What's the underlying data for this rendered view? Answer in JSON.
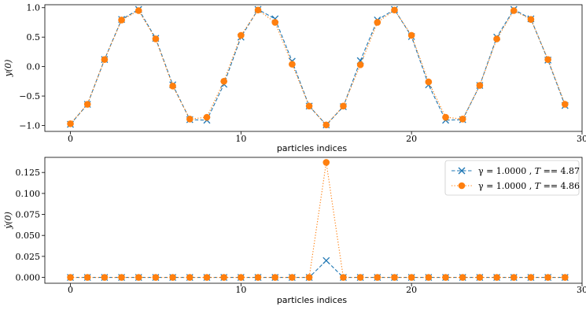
{
  "chart_data": [
    {
      "type": "line",
      "xlabel": "particles indices",
      "ylabel": "y(0)",
      "xlim": [
        -1.5,
        30
      ],
      "ylim": [
        -1.1,
        1.05
      ],
      "xticks": [
        0,
        10,
        20,
        30
      ],
      "xtick_labels": [
        "0",
        "10",
        "20",
        "30"
      ],
      "yticks": [
        -1.0,
        -0.5,
        0.0,
        0.5,
        1.0
      ],
      "ytick_labels": [
        "−1.0",
        "−0.5",
        "0.0",
        "0.5",
        "1.0"
      ],
      "x": [
        0,
        1,
        2,
        3,
        4,
        5,
        6,
        7,
        8,
        9,
        10,
        11,
        12,
        13,
        14,
        15,
        16,
        17,
        18,
        19,
        20,
        21,
        22,
        23,
        24,
        25,
        26,
        27,
        28,
        29
      ],
      "series": [
        {
          "color": "#1f77b4",
          "marker": "x",
          "linestyle": "dashed",
          "values": [
            -0.98,
            -0.64,
            0.12,
            0.8,
            0.97,
            0.48,
            -0.31,
            -0.9,
            -0.91,
            -0.3,
            0.5,
            0.97,
            0.81,
            0.09,
            -0.67,
            -0.99,
            -0.68,
            0.1,
            0.79,
            0.97,
            0.51,
            -0.31,
            -0.91,
            -0.9,
            -0.32,
            0.5,
            0.97,
            0.81,
            0.11,
            -0.66
          ]
        },
        {
          "color": "#ff7f0e",
          "marker": "o",
          "linestyle": "dotted",
          "values": [
            -0.97,
            -0.64,
            0.12,
            0.79,
            0.95,
            0.47,
            -0.33,
            -0.89,
            -0.86,
            -0.25,
            0.53,
            0.96,
            0.75,
            0.04,
            -0.67,
            -0.99,
            -0.67,
            0.03,
            0.75,
            0.96,
            0.53,
            -0.26,
            -0.86,
            -0.89,
            -0.32,
            0.47,
            0.95,
            0.8,
            0.12,
            -0.64
          ]
        }
      ]
    },
    {
      "type": "line",
      "xlabel": "particles indices",
      "ylabel": "ẏ(0)",
      "xlim": [
        -1.5,
        30
      ],
      "ylim": [
        -0.007,
        0.143
      ],
      "xticks": [
        0,
        10,
        20,
        30
      ],
      "xtick_labels": [
        "0",
        "10",
        "20",
        "30"
      ],
      "yticks": [
        0.0,
        0.025,
        0.05,
        0.075,
        0.1,
        0.125
      ],
      "ytick_labels": [
        "0.000",
        "0.025",
        "0.050",
        "0.075",
        "0.100",
        "0.125"
      ],
      "legend_position": "top-right",
      "x": [
        0,
        1,
        2,
        3,
        4,
        5,
        6,
        7,
        8,
        9,
        10,
        11,
        12,
        13,
        14,
        15,
        16,
        17,
        18,
        19,
        20,
        21,
        22,
        23,
        24,
        25,
        26,
        27,
        28,
        29
      ],
      "series": [
        {
          "name": "γ = 1.0000 , T == 4.87",
          "legend_main": "γ = 1.0000 , ",
          "legend_t": "T",
          "legend_rest": " == 4.87",
          "color": "#1f77b4",
          "marker": "x",
          "linestyle": "dashed",
          "values": [
            0,
            0,
            0,
            0,
            0,
            0,
            0,
            0,
            0,
            0,
            0,
            0,
            0,
            0,
            0,
            0.02,
            0,
            0,
            0,
            0,
            0,
            0,
            0,
            0,
            0,
            0,
            0,
            0,
            0,
            0
          ]
        },
        {
          "name": "γ = 1.0000 , T == 4.86",
          "legend_main": "γ = 1.0000 , ",
          "legend_t": "T",
          "legend_rest": " == 4.86",
          "color": "#ff7f0e",
          "marker": "o",
          "linestyle": "dotted",
          "values": [
            0,
            0,
            0,
            0,
            0,
            0,
            0,
            0,
            0,
            0,
            0,
            0,
            0,
            0,
            0,
            0.137,
            0,
            0,
            0,
            0,
            0,
            0,
            0,
            0,
            0,
            0,
            0,
            0,
            0,
            0
          ]
        }
      ]
    }
  ]
}
